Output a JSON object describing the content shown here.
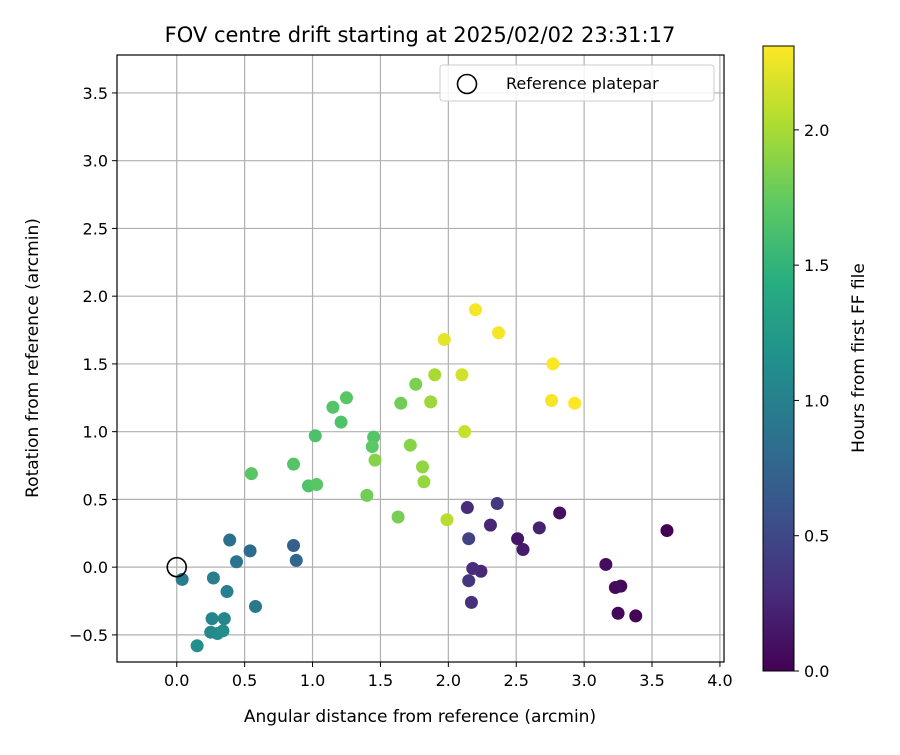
{
  "chart_data": {
    "type": "scatter",
    "title": "FOV centre drift starting at 2025/02/02 23:31:17",
    "xlabel": "Angular distance from reference (arcmin)",
    "ylabel": "Rotation from reference (arcmin)",
    "xlim": [
      -0.44,
      4.03
    ],
    "ylim": [
      -0.7,
      3.78
    ],
    "xticks": [
      0.0,
      0.5,
      1.0,
      1.5,
      2.0,
      2.5,
      3.0,
      3.5,
      4.0
    ],
    "xtick_labels": [
      "0.0",
      "0.5",
      "1.0",
      "1.5",
      "2.0",
      "2.5",
      "3.0",
      "3.5",
      "4.0"
    ],
    "yticks": [
      -0.5,
      0.0,
      0.5,
      1.0,
      1.5,
      2.0,
      2.5,
      3.0,
      3.5
    ],
    "ytick_labels": [
      "−0.5",
      "0.0",
      "0.5",
      "1.0",
      "1.5",
      "2.0",
      "2.5",
      "3.0",
      "3.5"
    ],
    "grid": true,
    "legend": {
      "position": "top-right",
      "entries": [
        "Reference platepar"
      ]
    },
    "reference_point": {
      "x": 0.0,
      "y": 0.0
    },
    "colorbar": {
      "label": "Hours from first FF file",
      "min": 0.0,
      "max": 2.31,
      "ticks": [
        0.0,
        0.5,
        1.0,
        1.5,
        2.0
      ],
      "tick_labels": [
        "0.0",
        "0.5",
        "1.0",
        "1.5",
        "2.0"
      ],
      "colormap": "viridis"
    },
    "points": [
      {
        "x": 3.61,
        "y": 0.27,
        "c": 0.0
      },
      {
        "x": 3.38,
        "y": -0.36,
        "c": 0.02
      },
      {
        "x": 3.25,
        "y": -0.34,
        "c": 0.04
      },
      {
        "x": 3.27,
        "y": -0.14,
        "c": 0.05
      },
      {
        "x": 3.23,
        "y": -0.15,
        "c": 0.07
      },
      {
        "x": 3.16,
        "y": 0.02,
        "c": 0.08
      },
      {
        "x": 2.82,
        "y": 0.4,
        "c": 0.1
      },
      {
        "x": 2.51,
        "y": 0.21,
        "c": 0.13
      },
      {
        "x": 2.55,
        "y": 0.13,
        "c": 0.17
      },
      {
        "x": 2.67,
        "y": 0.29,
        "c": 0.22
      },
      {
        "x": 2.31,
        "y": 0.31,
        "c": 0.25
      },
      {
        "x": 2.24,
        "y": -0.03,
        "c": 0.26
      },
      {
        "x": 2.14,
        "y": 0.44,
        "c": 0.28
      },
      {
        "x": 2.18,
        "y": -0.01,
        "c": 0.3
      },
      {
        "x": 2.17,
        "y": -0.26,
        "c": 0.32
      },
      {
        "x": 2.15,
        "y": -0.1,
        "c": 0.34
      },
      {
        "x": 2.36,
        "y": 0.47,
        "c": 0.38
      },
      {
        "x": 2.15,
        "y": 0.21,
        "c": 0.45
      },
      {
        "x": 0.86,
        "y": 0.16,
        "c": 0.7
      },
      {
        "x": 0.88,
        "y": 0.05,
        "c": 0.78
      },
      {
        "x": 0.54,
        "y": 0.12,
        "c": 0.8
      },
      {
        "x": 0.39,
        "y": 0.2,
        "c": 0.84
      },
      {
        "x": 0.44,
        "y": 0.04,
        "c": 0.88
      },
      {
        "x": 0.58,
        "y": -0.29,
        "c": 0.92
      },
      {
        "x": 0.04,
        "y": -0.09,
        "c": 0.95
      },
      {
        "x": 0.27,
        "y": -0.08,
        "c": 0.98
      },
      {
        "x": 0.37,
        "y": -0.18,
        "c": 1.0
      },
      {
        "x": 0.26,
        "y": -0.38,
        "c": 1.03
      },
      {
        "x": 0.35,
        "y": -0.38,
        "c": 1.05
      },
      {
        "x": 0.25,
        "y": -0.48,
        "c": 1.07
      },
      {
        "x": 0.3,
        "y": -0.49,
        "c": 1.1
      },
      {
        "x": 0.34,
        "y": -0.47,
        "c": 1.12
      },
      {
        "x": 0.15,
        "y": -0.58,
        "c": 1.14
      },
      {
        "x": 0.55,
        "y": 0.69,
        "c": 1.7
      },
      {
        "x": 0.86,
        "y": 0.76,
        "c": 1.68
      },
      {
        "x": 0.97,
        "y": 0.6,
        "c": 1.66
      },
      {
        "x": 1.03,
        "y": 0.61,
        "c": 1.7
      },
      {
        "x": 1.02,
        "y": 0.97,
        "c": 1.64
      },
      {
        "x": 1.15,
        "y": 1.18,
        "c": 1.68
      },
      {
        "x": 1.21,
        "y": 1.07,
        "c": 1.66
      },
      {
        "x": 1.25,
        "y": 1.25,
        "c": 1.7
      },
      {
        "x": 1.45,
        "y": 0.96,
        "c": 1.68
      },
      {
        "x": 1.44,
        "y": 0.89,
        "c": 1.72
      },
      {
        "x": 1.46,
        "y": 0.79,
        "c": 1.88
      },
      {
        "x": 1.4,
        "y": 0.53,
        "c": 1.8
      },
      {
        "x": 1.63,
        "y": 0.37,
        "c": 1.82
      },
      {
        "x": 1.65,
        "y": 1.21,
        "c": 1.8
      },
      {
        "x": 1.76,
        "y": 1.35,
        "c": 1.84
      },
      {
        "x": 1.72,
        "y": 0.9,
        "c": 1.88
      },
      {
        "x": 1.81,
        "y": 0.74,
        "c": 1.92
      },
      {
        "x": 1.82,
        "y": 0.63,
        "c": 1.94
      },
      {
        "x": 1.87,
        "y": 1.22,
        "c": 1.96
      },
      {
        "x": 1.9,
        "y": 1.42,
        "c": 2.0
      },
      {
        "x": 1.99,
        "y": 0.35,
        "c": 2.06
      },
      {
        "x": 2.12,
        "y": 1.0,
        "c": 2.12
      },
      {
        "x": 2.1,
        "y": 1.42,
        "c": 2.15
      },
      {
        "x": 1.97,
        "y": 1.68,
        "c": 2.22
      },
      {
        "x": 2.2,
        "y": 1.9,
        "c": 2.28
      },
      {
        "x": 2.37,
        "y": 1.73,
        "c": 2.28
      },
      {
        "x": 2.77,
        "y": 1.5,
        "c": 2.3
      },
      {
        "x": 2.76,
        "y": 1.23,
        "c": 2.29
      },
      {
        "x": 2.93,
        "y": 1.21,
        "c": 2.31
      }
    ]
  }
}
